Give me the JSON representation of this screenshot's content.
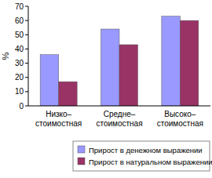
{
  "chart_data": {
    "type": "bar",
    "y_label": "%",
    "categories": [
      "Низко–стоимостная",
      "Средне–стоимостная",
      "Высоко–стоимостная"
    ],
    "series": [
      {
        "name": "Прирост в денежном выражении",
        "color": "#9999ff",
        "values": [
          36,
          54,
          63
        ]
      },
      {
        "name": "Прирост в натуральном выражении",
        "color": "#993366",
        "values": [
          17,
          43,
          60
        ]
      }
    ],
    "ylim": [
      0,
      70
    ],
    "yticks": [
      0,
      10,
      20,
      30,
      40,
      50,
      60,
      70
    ],
    "grid": false,
    "legend": "bottom"
  }
}
